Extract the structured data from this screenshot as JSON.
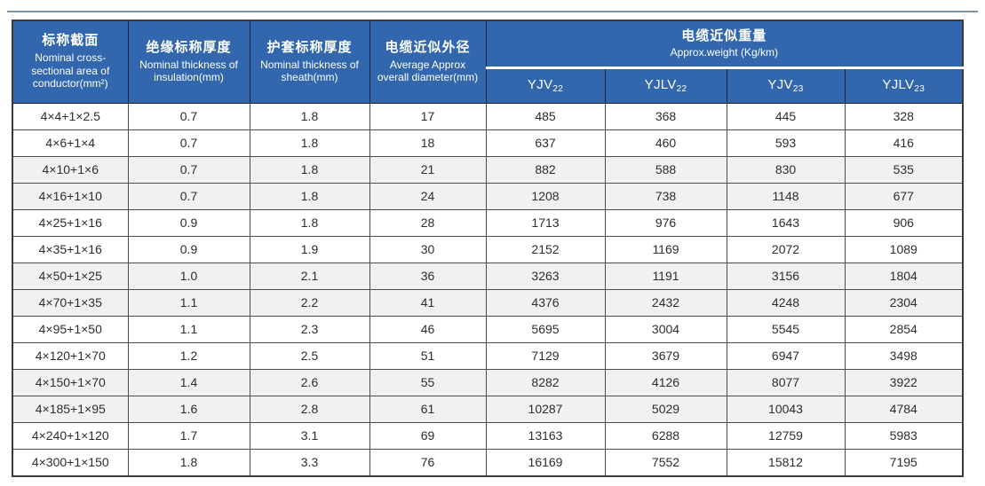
{
  "table": {
    "columns": [
      {
        "zh": "标称截面",
        "en": "Nominal cross-sectional area of conductor(mm²)"
      },
      {
        "zh": "绝缘标称厚度",
        "en": "Nominal thickness of insulation(mm)"
      },
      {
        "zh": "护套标称厚度",
        "en": "Nominal thickness of sheath(mm)"
      },
      {
        "zh": "电缆近似外径",
        "en": "Average Approx overall diameter(mm)"
      }
    ],
    "weight_group": {
      "zh": "电缆近似重量",
      "en": "Approx.weight (Kg/km)"
    },
    "weight_columns": [
      {
        "name": "YJV",
        "sub": "22"
      },
      {
        "name": "YJLV",
        "sub": "22"
      },
      {
        "name": "YJV",
        "sub": "23"
      },
      {
        "name": "YJLV",
        "sub": "23"
      }
    ],
    "rows": [
      [
        "4×4+1×2.5",
        "0.7",
        "1.8",
        "17",
        "485",
        "368",
        "445",
        "328"
      ],
      [
        "4×6+1×4",
        "0.7",
        "1.8",
        "18",
        "637",
        "460",
        "593",
        "416"
      ],
      [
        "4×10+1×6",
        "0.7",
        "1.8",
        "21",
        "882",
        "588",
        "830",
        "535"
      ],
      [
        "4×16+1×10",
        "0.7",
        "1.8",
        "24",
        "1208",
        "738",
        "1148",
        "677"
      ],
      [
        "4×25+1×16",
        "0.9",
        "1.8",
        "28",
        "1713",
        "976",
        "1643",
        "906"
      ],
      [
        "4×35+1×16",
        "0.9",
        "1.9",
        "30",
        "2152",
        "1169",
        "2072",
        "1089"
      ],
      [
        "4×50+1×25",
        "1.0",
        "2.1",
        "36",
        "3263",
        "1191",
        "3156",
        "1804"
      ],
      [
        "4×70+1×35",
        "1.1",
        "2.2",
        "41",
        "4376",
        "2432",
        "4248",
        "2304"
      ],
      [
        "4×95+1×50",
        "1.1",
        "2.3",
        "46",
        "5695",
        "3004",
        "5545",
        "2854"
      ],
      [
        "4×120+1×70",
        "1.2",
        "2.5",
        "51",
        "7129",
        "3679",
        "6947",
        "3498"
      ],
      [
        "4×150+1×70",
        "1.4",
        "2.6",
        "55",
        "8282",
        "4126",
        "8077",
        "3922"
      ],
      [
        "4×185+1×95",
        "1.6",
        "2.8",
        "61",
        "10287",
        "5029",
        "10043",
        "4784"
      ],
      [
        "4×240+1×120",
        "1.7",
        "3.1",
        "69",
        "13163",
        "6288",
        "12759",
        "5983"
      ],
      [
        "4×300+1×150",
        "1.8",
        "3.3",
        "76",
        "16169",
        "7552",
        "15812",
        "7195"
      ]
    ]
  },
  "colors": {
    "header_blue": "#3267ad",
    "row_stripe": "#f1f1ef",
    "border_dark": "#4c4c4c",
    "top_divider": "#7e93a3"
  }
}
